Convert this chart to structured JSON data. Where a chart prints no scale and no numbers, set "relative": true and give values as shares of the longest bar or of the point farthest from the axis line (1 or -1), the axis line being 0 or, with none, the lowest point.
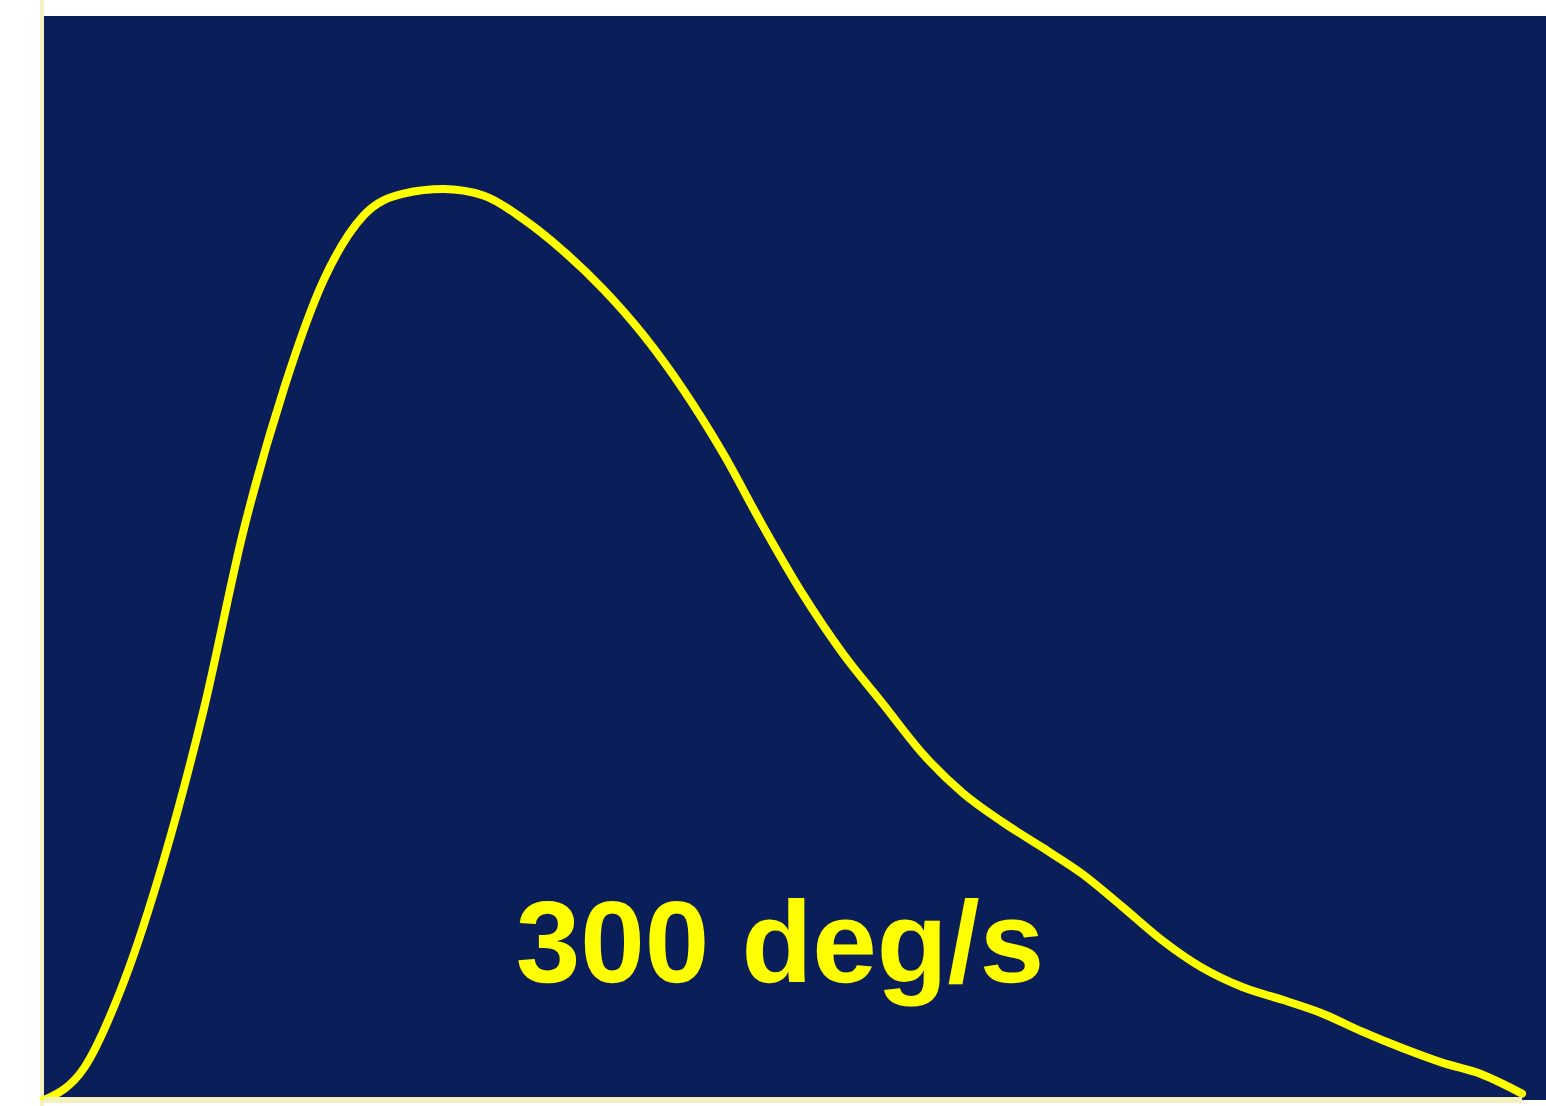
{
  "chart_data": {
    "type": "line",
    "relative": true,
    "categories": [
      null,
      null,
      null,
      null,
      null,
      null,
      null,
      null,
      null,
      null,
      null,
      null,
      null,
      null,
      null,
      null,
      null,
      null,
      null,
      null,
      null,
      null,
      null,
      null,
      null,
      null,
      null,
      null,
      null,
      null,
      null,
      null,
      null,
      null,
      null,
      null,
      null,
      null
    ],
    "series": [
      {
        "color": "#ffff00",
        "values": [
          0,
          0.035,
          0.13,
          0.264,
          0.429,
          0.626,
          0.78,
          0.9,
          0.971,
          0.995,
          1,
          0.993,
          0.967,
          0.932,
          0.89,
          0.84,
          0.78,
          0.71,
          0.63,
          0.555,
          0.49,
          0.435,
          0.38,
          0.337,
          0.305,
          0.277,
          0.248,
          0.212,
          0.175,
          0.145,
          0.124,
          0.11,
          0.095,
          0.075,
          0.057,
          0.041,
          0.028,
          0.007
        ]
      }
    ],
    "annotations": [
      "300 deg/s"
    ],
    "marker": "none",
    "line_style": "solid",
    "grid": false,
    "legend": false
  }
}
